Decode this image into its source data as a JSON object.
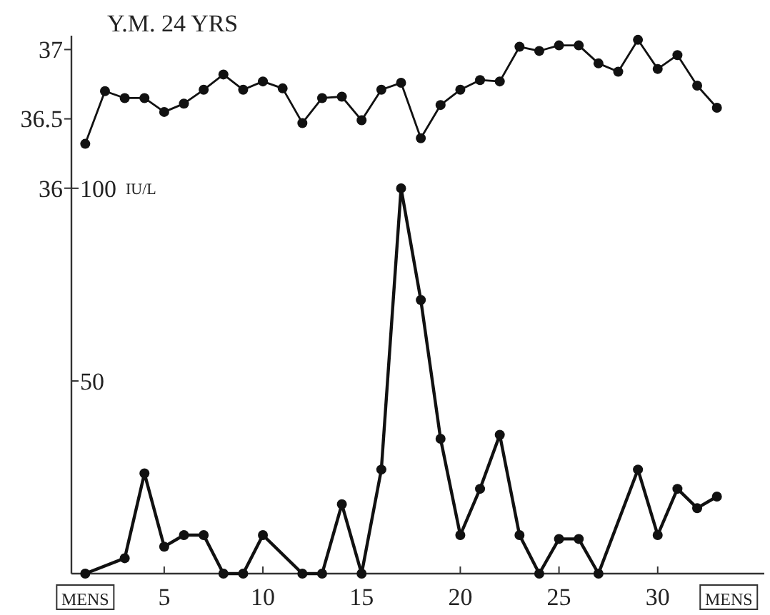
{
  "chart_data": {
    "type": "line",
    "title": "Y.M. 24 YRS",
    "ylabel": "IU/L",
    "xlim": [
      0.3,
      35.4
    ],
    "xticks": [
      {
        "value": 1,
        "label": "MENS"
      },
      5,
      10,
      15,
      20,
      25,
      30,
      {
        "value": 33.6,
        "label": "MENS"
      }
    ],
    "ylim": [
      0,
      139.6
    ],
    "yticks": [
      50,
      100
    ],
    "y2lim": [
      33.22,
      37.1
    ],
    "y2ticks": [
      36,
      36.5,
      37
    ],
    "marker": "circle",
    "grid": false,
    "series": [
      {
        "axis": "y2",
        "color": "#111111",
        "x": [
          1,
          2,
          3,
          4,
          5,
          6,
          7,
          8,
          9,
          10,
          11,
          12,
          13,
          14,
          15,
          16,
          17,
          18,
          19,
          20,
          21,
          22,
          23,
          24,
          25,
          26,
          27,
          28,
          29,
          30,
          31,
          32,
          33
        ],
        "values": [
          36.32,
          36.7,
          36.65,
          36.65,
          36.55,
          36.61,
          36.71,
          36.82,
          36.71,
          36.77,
          36.72,
          36.47,
          36.65,
          36.66,
          36.49,
          36.71,
          36.76,
          36.36,
          36.6,
          36.71,
          36.78,
          36.77,
          37.02,
          36.99,
          37.03,
          37.03,
          36.9,
          36.84,
          37.07,
          36.86,
          36.96,
          36.74,
          36.58
        ]
      },
      {
        "axis": "y",
        "color": "#111111",
        "x": [
          1,
          3,
          4,
          5,
          6,
          7,
          8,
          9,
          10,
          12,
          13,
          14,
          15,
          16,
          17,
          18,
          19,
          20,
          21,
          22,
          23,
          24,
          25,
          26,
          27,
          29,
          30,
          31,
          32,
          33
        ],
        "values": [
          0,
          4,
          26,
          7,
          10,
          10,
          0,
          0,
          10,
          0,
          0,
          18,
          0,
          27,
          100,
          71,
          35,
          10,
          22,
          36,
          10,
          0,
          9,
          9,
          0,
          27,
          10,
          22,
          17,
          20
        ]
      }
    ]
  }
}
